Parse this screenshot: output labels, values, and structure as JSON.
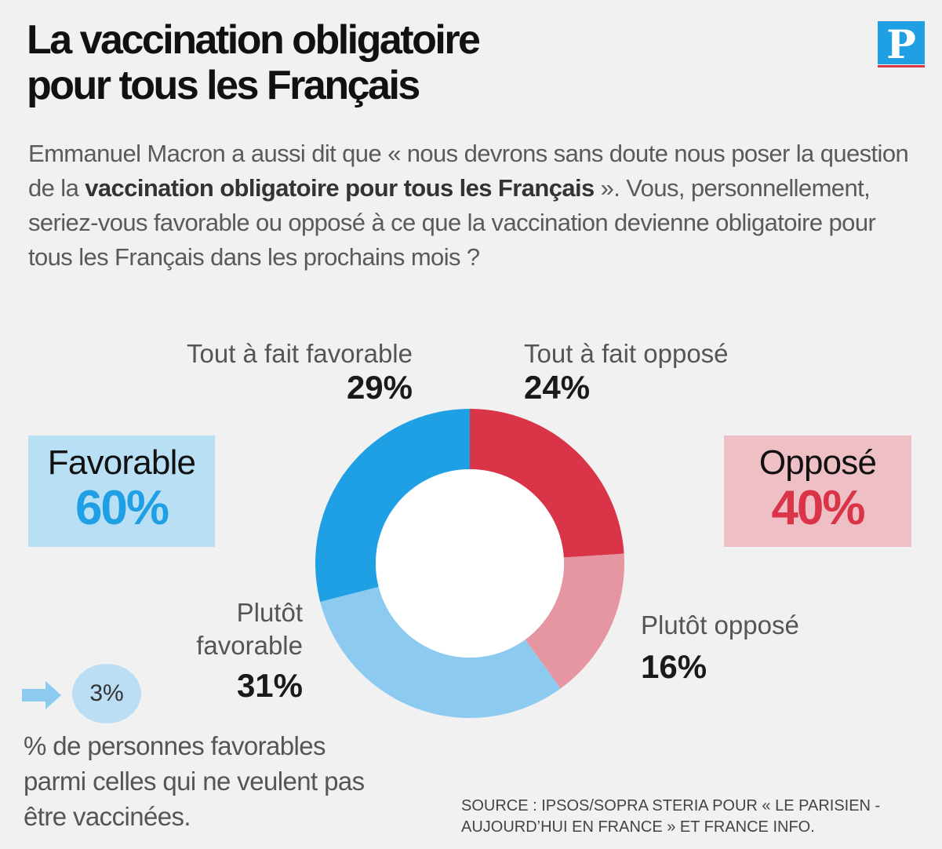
{
  "title": {
    "line1": "La vaccination obligatoire",
    "line2": "pour tous les Français"
  },
  "logo": {
    "letter": "P"
  },
  "question": {
    "part1": "Emmanuel Macron a aussi dit que « nous devrons sans doute nous poser la question de la ",
    "bold": "vaccination obligatoire pour tous les Français",
    "part2": " ». Vous, personnellement, seriez-vous favorable ou opposé à ce que la vaccination devienne obligatoire pour tous les Français dans les prochains mois ?"
  },
  "summary": {
    "favorable_label": "Favorable",
    "favorable_value": "60%",
    "opposed_label": "Opposé",
    "opposed_value": "40%"
  },
  "note": {
    "value": "3%",
    "text": "% de personnes favorables parmi celles qui ne veulent pas être vaccinées."
  },
  "source": {
    "line1": "SOURCE : IPSOS/SOPRA STERIA POUR « LE PARISIEN -",
    "line2": "AUJOURD’HUI EN FRANCE » ET FRANCE INFO."
  },
  "colors": {
    "tout_favorable": "#1f9fe4",
    "plutot_favorable": "#8ccbef",
    "tout_oppose": "#d93447",
    "plutot_oppose": "#e696a0",
    "favorable_accent": "#1f9fe4",
    "opposed_accent": "#d93447"
  },
  "chart_data": {
    "type": "pie",
    "title": "La vaccination obligatoire pour tous les Français",
    "categories": [
      "Tout à fait opposé",
      "Plutôt opposé",
      "Plutôt favorable",
      "Tout à fait favorable"
    ],
    "values": [
      24,
      16,
      31,
      29
    ],
    "value_labels": [
      "24%",
      "16%",
      "31%",
      "29%"
    ],
    "label_lines": [
      [
        "Tout à fait opposé"
      ],
      [
        "Plutôt opposé"
      ],
      [
        "Plutôt",
        "favorable"
      ],
      [
        "Tout à fait favorable"
      ]
    ],
    "colors": [
      "#d93447",
      "#e696a0",
      "#8ccbef",
      "#1f9fe4"
    ],
    "donut": true
  }
}
